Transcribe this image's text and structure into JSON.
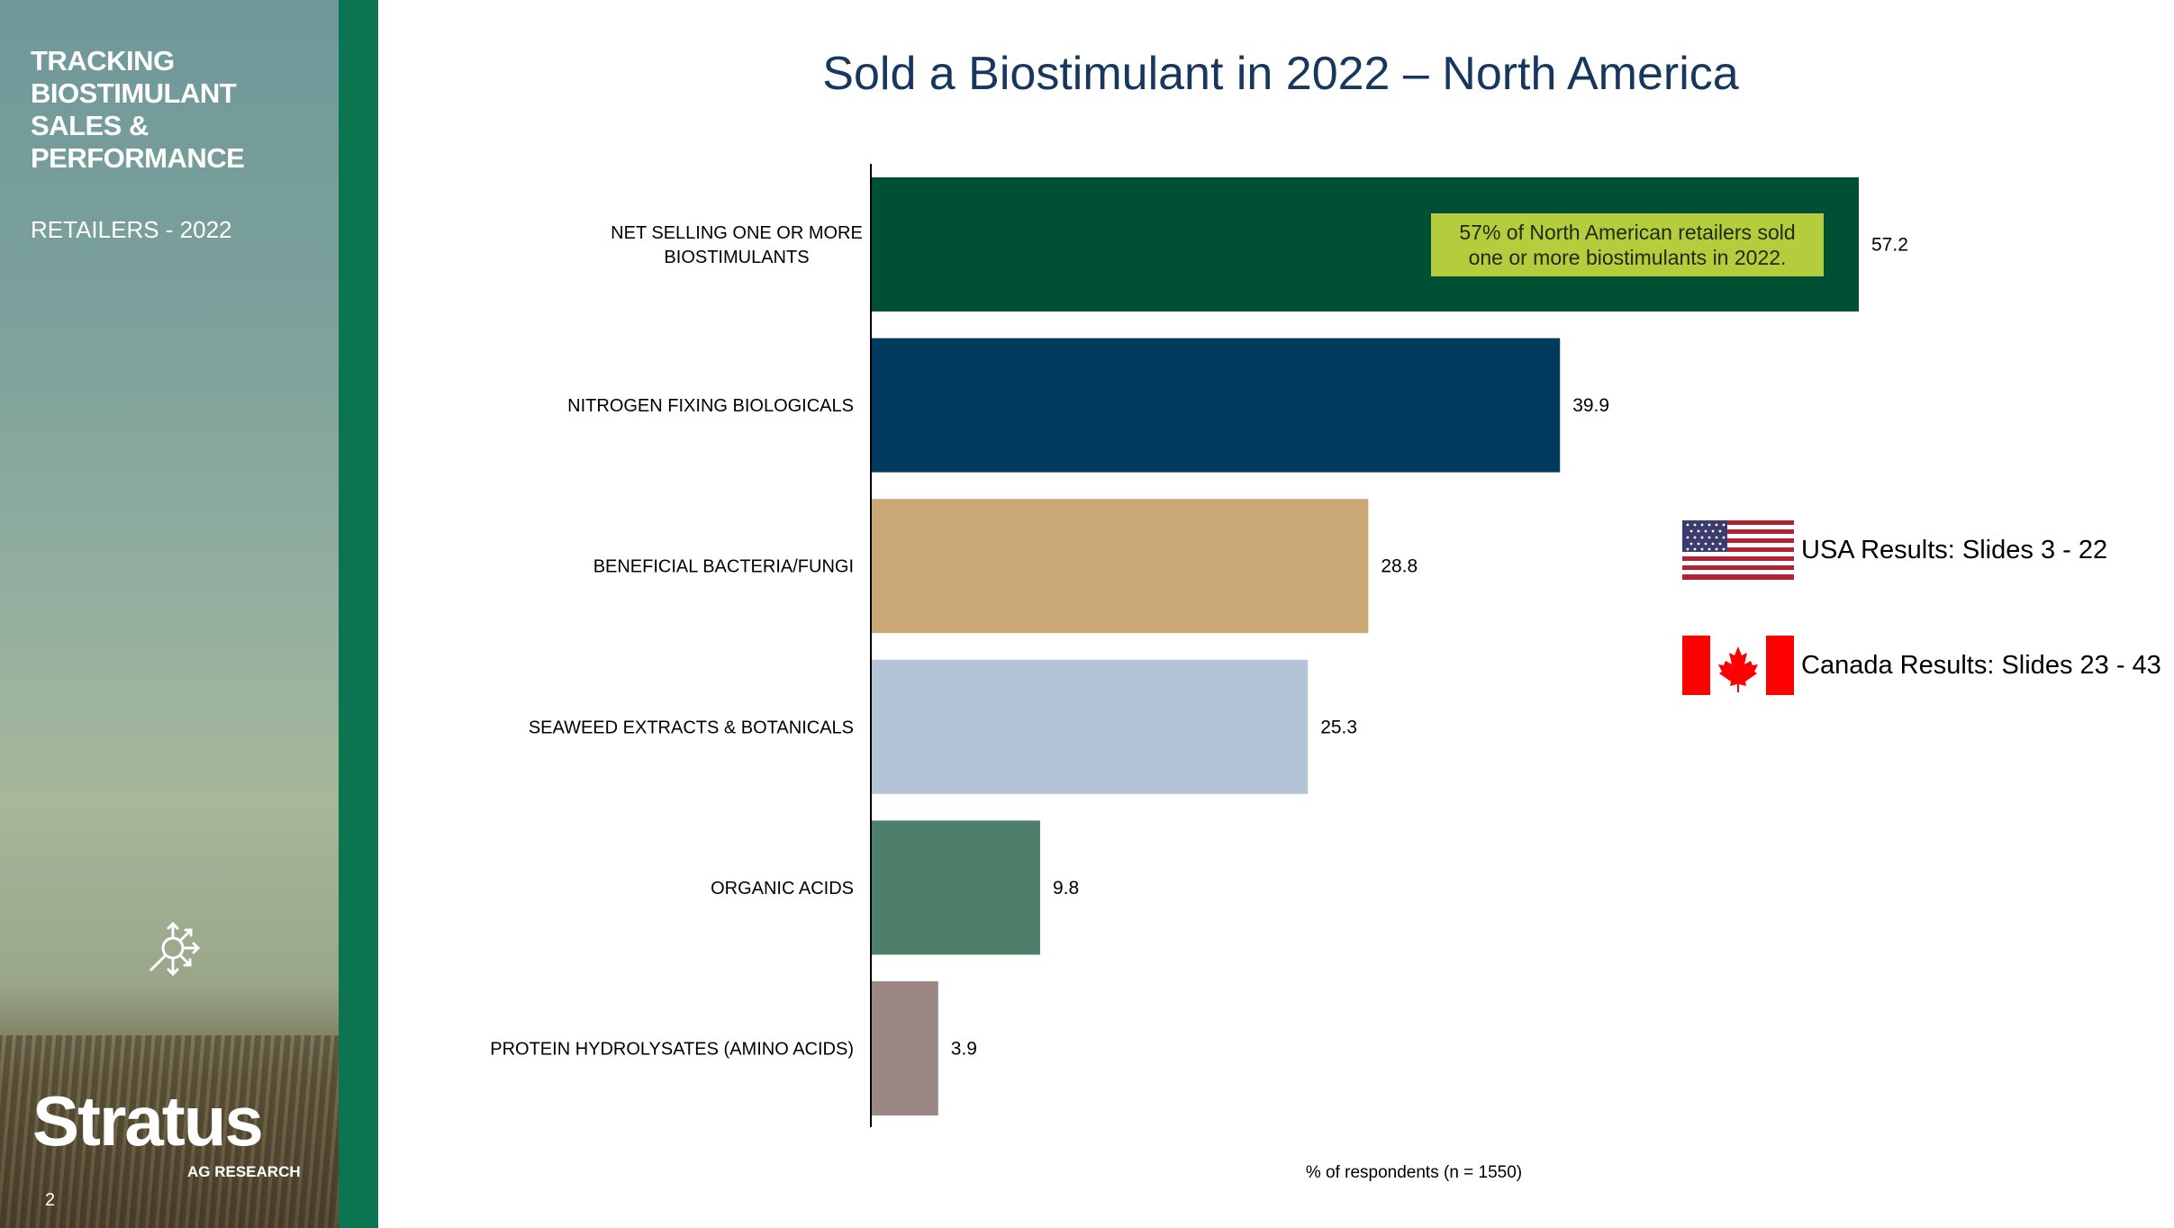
{
  "sidebar": {
    "title_lines": [
      "TRACKING",
      "BIOSTIMULANT",
      "SALES &",
      "PERFORMANCE"
    ],
    "subtitle": "RETAILERS - 2022",
    "icon": "search-analysis-icon",
    "brand": "Stratus",
    "brand_sub": "AG RESEARCH",
    "page_number": "2"
  },
  "colors": {
    "sidebar_green": "#0c7450",
    "title_blue": "#17375e",
    "callout_bg": "#b5cd3c"
  },
  "callout": {
    "lines": [
      "57% of North American retailers sold",
      "one or more biostimulants in 2022."
    ]
  },
  "flags": [
    {
      "icon": "usa-flag-icon",
      "label": "USA Results: Slides 3 - 22"
    },
    {
      "icon": "canada-flag-icon",
      "label": "Canada Results: Slides 23 - 43"
    }
  ],
  "chart_data": {
    "type": "bar",
    "orientation": "horizontal",
    "title": "Sold a Biostimulant in 2022 – North America",
    "xlabel": "% of respondents (n = 1550)",
    "ylabel": "",
    "xlim": [
      0,
      60
    ],
    "grid": false,
    "categories": [
      "NET SELLING ONE OR MORE BIOSTIMULANTS",
      "NITROGEN FIXING BIOLOGICALS",
      "BENEFICIAL BACTERIA/FUNGI",
      "SEAWEED EXTRACTS & BOTANICALS",
      "ORGANIC ACIDS",
      "PROTEIN HYDROLYSATES (AMINO ACIDS)"
    ],
    "category_lines": [
      [
        "NET SELLING ONE OR MORE",
        "BIOSTIMULANTS"
      ],
      [
        "NITROGEN FIXING BIOLOGICALS"
      ],
      [
        "BENEFICIAL BACTERIA/FUNGI"
      ],
      [
        "SEAWEED EXTRACTS & BOTANICALS"
      ],
      [
        "ORGANIC ACIDS"
      ],
      [
        "PROTEIN HYDROLYSATES (AMINO ACIDS)"
      ]
    ],
    "values": [
      57.2,
      39.9,
      28.8,
      25.3,
      9.8,
      3.9
    ],
    "value_labels": [
      "57.2",
      "39.9",
      "28.8",
      "25.3",
      "9.8",
      "3.9"
    ],
    "bar_colors": [
      "#005035",
      "#003a5d",
      "#c9a875",
      "#b5c3d6",
      "#4e7f6a",
      "#9b8784"
    ]
  }
}
